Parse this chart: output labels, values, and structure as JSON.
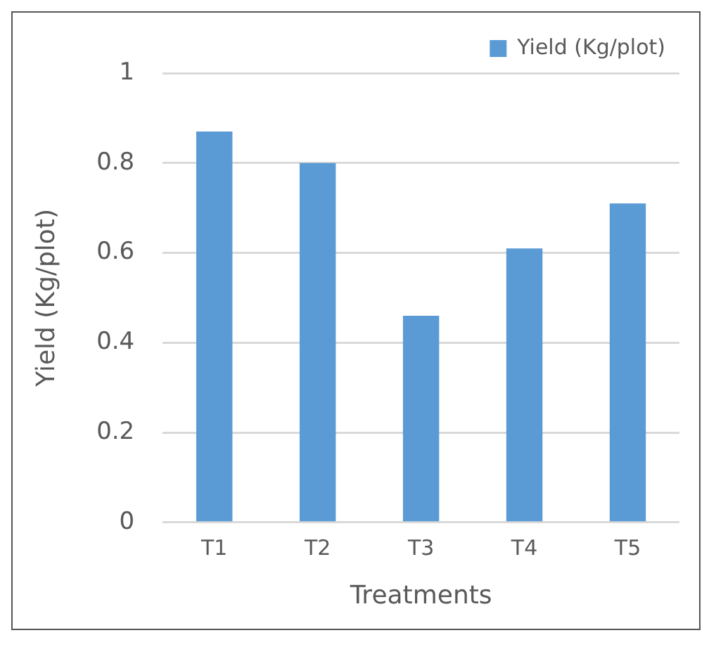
{
  "chart_data": {
    "type": "bar",
    "xlabel": "Treatments",
    "ylabel": "Yield (Kg/plot)",
    "categories": [
      "T1",
      "T2",
      "T3",
      "T4",
      "T5"
    ],
    "series": [
      {
        "name": "Yield (Kg/plot)",
        "color": "#5b9bd5",
        "values": [
          0.87,
          0.8,
          0.46,
          0.61,
          0.71
        ]
      }
    ],
    "ylim": [
      0,
      1
    ],
    "yticks": [
      0,
      0.2,
      0.4,
      0.6,
      0.8,
      1
    ],
    "grid": "y",
    "legend": "top right"
  }
}
